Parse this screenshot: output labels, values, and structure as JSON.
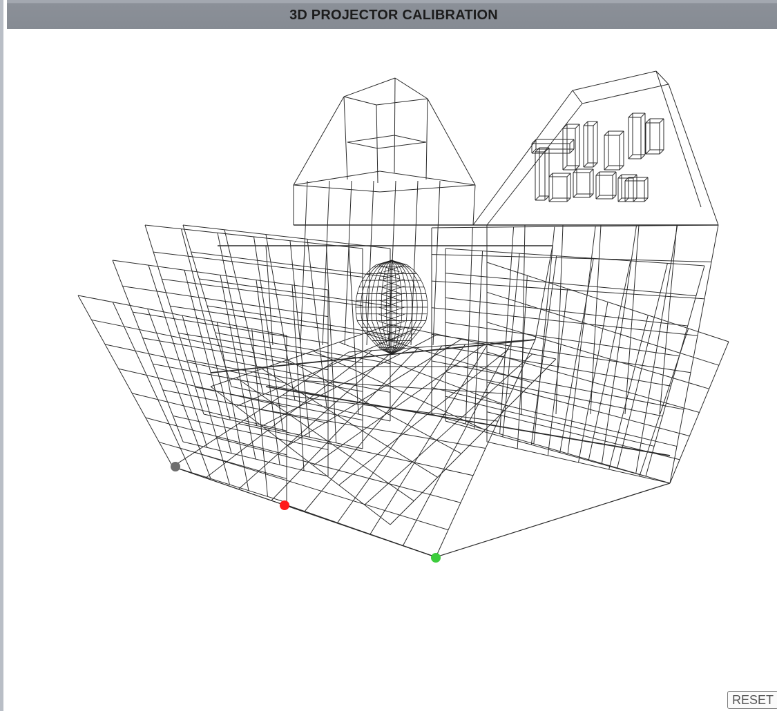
{
  "window": {
    "title": "3D PROJECTOR CALIBRATION"
  },
  "controls": {
    "reset_label": "RESET"
  },
  "scene": {
    "wire_color": "#2a2a2a",
    "calibration_points": [
      {
        "name": "gray-calibration-point",
        "color": "#6e6e6e"
      },
      {
        "name": "red-calibration-point",
        "color": "#ff1a1a"
      },
      {
        "name": "green-calibration-point",
        "color": "#3ccc3c"
      }
    ],
    "objects": [
      "wireframe-room-grid",
      "wireframe-head-model",
      "wireframe-3d-text",
      "wireframe-box-structures"
    ]
  }
}
